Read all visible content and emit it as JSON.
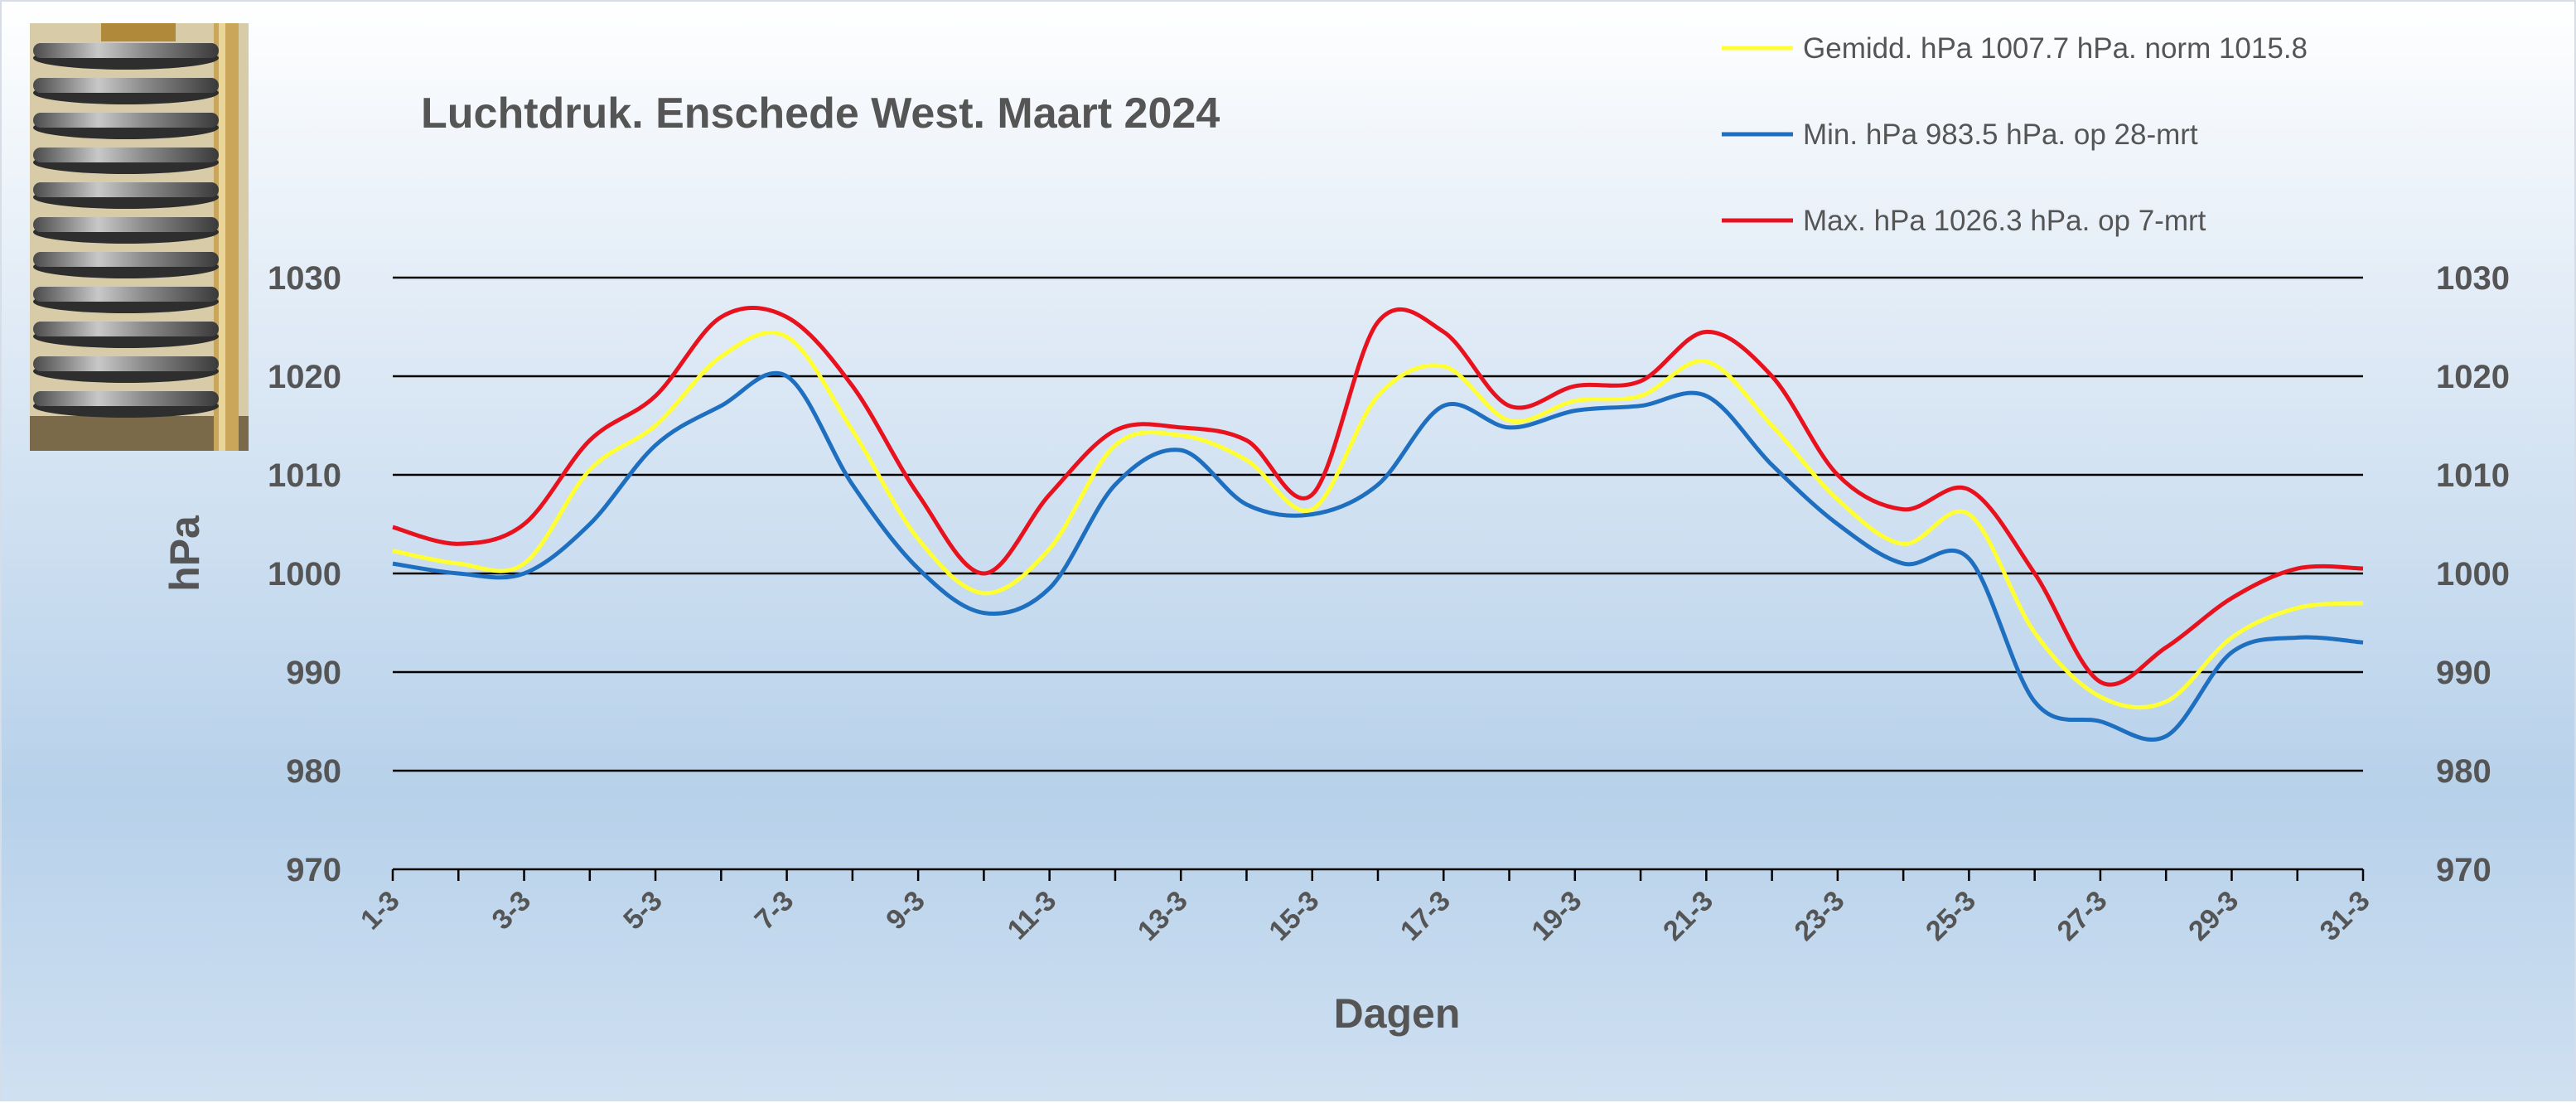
{
  "chart_data": {
    "type": "line",
    "title": "Luchtdruk. Enschede West. Maart 2024",
    "xlabel": "Dagen",
    "ylabel": "hPa",
    "ylim": [
      970,
      1030
    ],
    "yticks": [
      "970",
      "980",
      "990",
      "1000",
      "1010",
      "1020",
      "1030"
    ],
    "x": [
      "1-3",
      "2-3",
      "3-3",
      "4-3",
      "5-3",
      "6-3",
      "7-3",
      "8-3",
      "9-3",
      "10-3",
      "11-3",
      "12-3",
      "13-3",
      "14-3",
      "15-3",
      "16-3",
      "17-3",
      "18-3",
      "19-3",
      "20-3",
      "21-3",
      "22-3",
      "23-3",
      "24-3",
      "25-3",
      "26-3",
      "27-3",
      "28-3",
      "29-3",
      "30-3",
      "31-3"
    ],
    "xtick_labels": [
      "1-3",
      "3-3",
      "5-3",
      "7-3",
      "9-3",
      "11-3",
      "13-3",
      "15-3",
      "17-3",
      "19-3",
      "21-3",
      "23-3",
      "25-3",
      "27-3",
      "29-3",
      "31-3"
    ],
    "grid": true,
    "legend_position": "top-right",
    "series": [
      {
        "name": "Gemidd. hPa 1007.7 hPa.  norm 1015.8",
        "color": "#ffff33",
        "values": [
          1002.3,
          1001.0,
          1001.0,
          1010.5,
          1015.0,
          1022.0,
          1024.0,
          1014.5,
          1003.5,
          998.0,
          1002.5,
          1013.0,
          1014.0,
          1011.5,
          1006.5,
          1018.0,
          1021.0,
          1015.5,
          1017.5,
          1018.0,
          1021.5,
          1015.0,
          1007.5,
          1003.0,
          1006.0,
          994.0,
          987.5,
          987.0,
          993.5,
          996.5,
          997.0
        ]
      },
      {
        "name": "Min. hPa 983.5 hPa.  op 28-mrt",
        "color": "#1f6fc0",
        "values": [
          1001.0,
          1000.0,
          1000.0,
          1005.0,
          1013.0,
          1017.0,
          1020.0,
          1009.0,
          1000.5,
          996.0,
          998.5,
          1009.0,
          1012.5,
          1007.0,
          1006.0,
          1009.0,
          1017.0,
          1014.8,
          1016.5,
          1017.0,
          1018.0,
          1011.0,
          1005.0,
          1001.0,
          1001.5,
          987.0,
          985.0,
          983.5,
          992.0,
          993.5,
          993.0
        ]
      },
      {
        "name": "Max. hPa 1026.3 hPa.  op 7-mrt",
        "color": "#e8121e",
        "values": [
          1004.7,
          1003.0,
          1005.0,
          1013.5,
          1018.0,
          1026.0,
          1026.0,
          1019.0,
          1008.0,
          1000.0,
          1008.0,
          1014.5,
          1014.8,
          1013.5,
          1008.0,
          1025.5,
          1024.5,
          1017.0,
          1019.0,
          1019.5,
          1024.5,
          1020.0,
          1010.0,
          1006.5,
          1008.5,
          1000.0,
          989.0,
          992.5,
          997.5,
          1000.5,
          1000.5
        ]
      }
    ]
  }
}
